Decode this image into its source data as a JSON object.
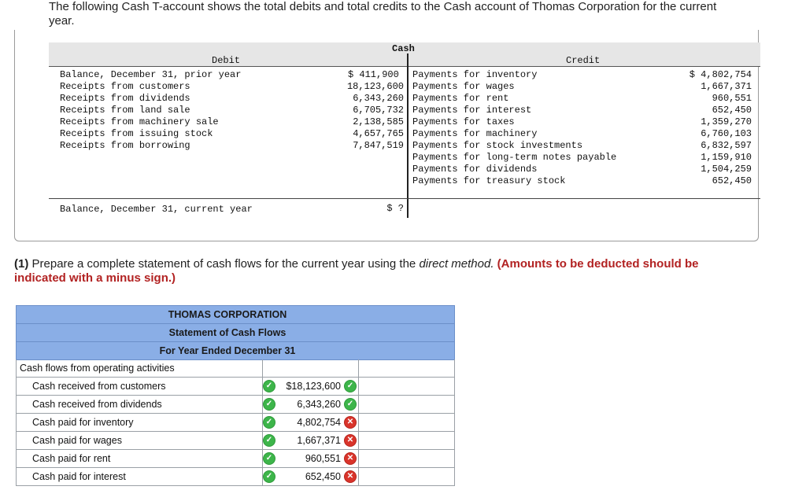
{
  "intro": "The following Cash T-account shows the total debits and total credits to the Cash account of Thomas Corporation for the current year.",
  "taccount": {
    "title": "Cash",
    "debit_label": "Debit",
    "credit_label": "Credit",
    "debits": [
      {
        "label": "Balance, December 31, prior year",
        "amount": "$ 411,900"
      },
      {
        "label": "Receipts from customers",
        "amount": "18,123,600"
      },
      {
        "label": "Receipts from dividends",
        "amount": "6,343,260"
      },
      {
        "label": "Receipts from land sale",
        "amount": "6,705,732"
      },
      {
        "label": "Receipts from machinery sale",
        "amount": "2,138,585"
      },
      {
        "label": "Receipts from issuing stock",
        "amount": "4,657,765"
      },
      {
        "label": "Receipts from borrowing",
        "amount": "7,847,519"
      }
    ],
    "credits": [
      {
        "label": "Payments for inventory",
        "amount": "$ 4,802,754"
      },
      {
        "label": "Payments for wages",
        "amount": "1,667,371"
      },
      {
        "label": "Payments for rent",
        "amount": "960,551"
      },
      {
        "label": "Payments for interest",
        "amount": "652,450"
      },
      {
        "label": "Payments for taxes",
        "amount": "1,359,270"
      },
      {
        "label": "Payments for machinery",
        "amount": "6,760,103"
      },
      {
        "label": "Payments for stock investments",
        "amount": "6,832,597"
      },
      {
        "label": "Payments for long-term notes payable",
        "amount": "1,159,910"
      },
      {
        "label": "Payments for dividends",
        "amount": "1,504,259"
      },
      {
        "label": "Payments for treasury stock",
        "amount": "652,450"
      }
    ],
    "ending_label": "Balance, December 31, current year",
    "ending_amount": "$ ?"
  },
  "instructions": {
    "prefix": "(1)",
    "text_before": " Prepare a complete statement of cash flows for the current year using the ",
    "method": "direct method.",
    "note": "(Amounts to be deducted should be indicated with a minus sign.)"
  },
  "statement": {
    "company": "THOMAS CORPORATION",
    "title": "Statement of Cash Flows",
    "period": "For Year Ended December 31",
    "section": "Cash flows from operating activities",
    "rows": [
      {
        "label": "Cash received from customers",
        "value": "$18,123,600",
        "label_status": "correct",
        "value_status": "correct"
      },
      {
        "label": "Cash received from dividends",
        "value": "6,343,260",
        "label_status": "correct",
        "value_status": "correct"
      },
      {
        "label": "Cash paid for inventory",
        "value": "4,802,754",
        "label_status": "correct",
        "value_status": "incorrect"
      },
      {
        "label": "Cash paid for wages",
        "value": "1,667,371",
        "label_status": "correct",
        "value_status": "incorrect"
      },
      {
        "label": "Cash paid for rent",
        "value": "960,551",
        "label_status": "correct",
        "value_status": "incorrect"
      },
      {
        "label": "Cash paid for interest",
        "value": "652,450",
        "label_status": "correct",
        "value_status": "incorrect"
      }
    ]
  },
  "colors": {
    "header_blue": "#8aaee6",
    "correct_green": "#3db54a",
    "incorrect_red": "#d9342b",
    "note_red": "#b22222"
  }
}
